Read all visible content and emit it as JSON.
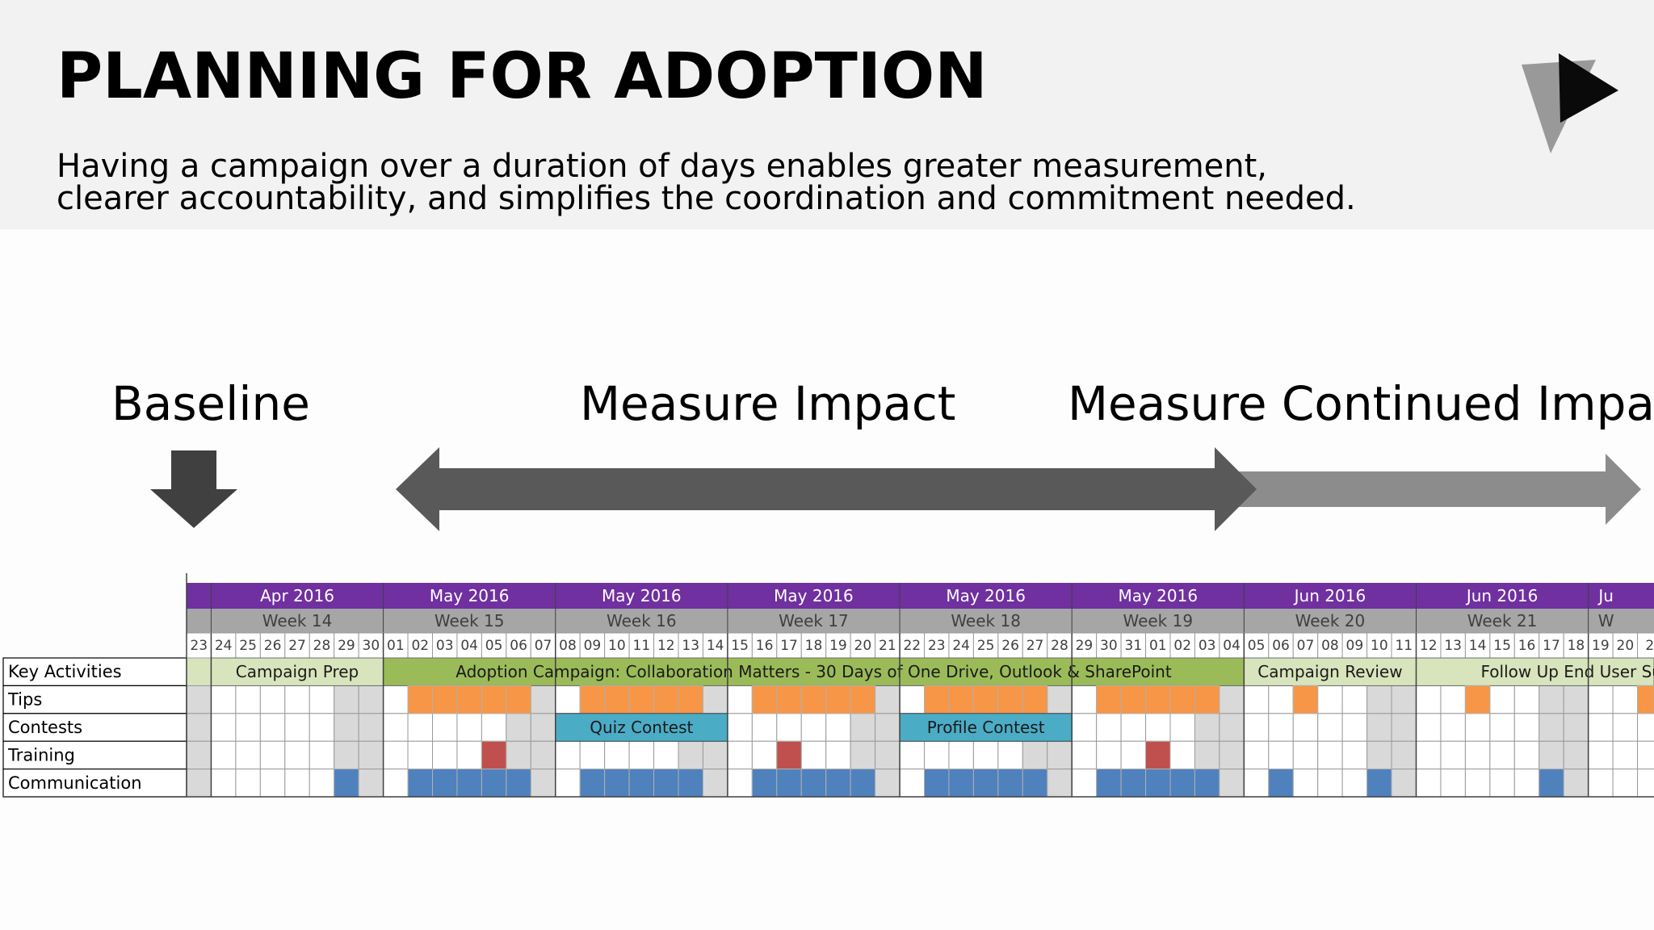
{
  "header": {
    "title": "PLANNING FOR ADOPTION",
    "subtitle": "Having a campaign over a duration of days enables greater measurement, clearer accountability, and simplifies the coordination and commitment needed."
  },
  "logo": {
    "icon": "play-triangle-logo-icon"
  },
  "phases": {
    "baseline": "Baseline",
    "measure_impact": "Measure Impact",
    "measure_continued": "Measure Continued Impact"
  },
  "icons": {
    "baseline_arrow": "down-arrow-icon",
    "impact_arrow": "double-arrow-icon",
    "continued_arrow": "right-arrow-icon"
  },
  "colors": {
    "purple": "#7030a0",
    "gray_row": "#a6a6a6",
    "weekend": "#d9d9d9",
    "prep_green": "#d8e4bc",
    "campaign_green": "#9bbb59",
    "tips": "#f79646",
    "contests": "#4bacc6",
    "training": "#c0504d",
    "communication": "#4f81bd"
  },
  "gantt": {
    "months": [
      "Apr 2016",
      "May 2016",
      "May 2016",
      "May 2016",
      "May 2016",
      "May 2016",
      "Jun 2016",
      "Jun 2016",
      "Ju"
    ],
    "weeks": [
      "Week 14",
      "Week 15",
      "Week 16",
      "Week 17",
      "Week 18",
      "Week 19",
      "Week 20",
      "Week 21",
      "W"
    ],
    "days": [
      "23",
      "24",
      "25",
      "26",
      "27",
      "28",
      "29",
      "30",
      "01",
      "02",
      "03",
      "04",
      "05",
      "06",
      "07",
      "08",
      "09",
      "10",
      "11",
      "12",
      "13",
      "14",
      "15",
      "16",
      "17",
      "18",
      "19",
      "20",
      "21",
      "22",
      "23",
      "24",
      "25",
      "26",
      "27",
      "28",
      "29",
      "30",
      "31",
      "01",
      "02",
      "03",
      "04",
      "05",
      "06",
      "07",
      "08",
      "09",
      "10",
      "11",
      "12",
      "13",
      "14",
      "15",
      "16",
      "17",
      "18",
      "19",
      "20",
      "2"
    ],
    "row_labels": [
      "Key Activities",
      "Tips",
      "Contests",
      "Training",
      "Communication"
    ],
    "activities": [
      {
        "label": "Campaign Prep",
        "start": 1,
        "span": 7,
        "color": "prep_green"
      },
      {
        "label": "Adoption Campaign: Collaboration Matters - 30 Days of One Drive, Outlook & SharePoint",
        "start": 8,
        "span": 35,
        "color": "campaign_green"
      },
      {
        "label": "Campaign Review",
        "start": 43,
        "span": 7,
        "color": "prep_green"
      },
      {
        "label": "Follow Up End User Sur",
        "start": 50,
        "span": 10,
        "color": "prep_green"
      }
    ],
    "tips_days": [
      9,
      10,
      11,
      12,
      13,
      16,
      17,
      18,
      19,
      20,
      23,
      24,
      25,
      26,
      27,
      30,
      31,
      32,
      33,
      34,
      37,
      38,
      39,
      40,
      41,
      45,
      52,
      59
    ],
    "contests": [
      {
        "label": "Quiz Contest",
        "start": 15,
        "span": 7
      },
      {
        "label": "Profile Contest",
        "start": 29,
        "span": 7
      }
    ],
    "training_days": [
      12,
      24,
      39
    ],
    "communication_days": [
      6,
      9,
      10,
      11,
      12,
      13,
      16,
      17,
      18,
      19,
      20,
      23,
      24,
      25,
      26,
      27,
      30,
      31,
      32,
      33,
      34,
      37,
      38,
      39,
      40,
      41,
      44,
      48,
      55
    ]
  }
}
